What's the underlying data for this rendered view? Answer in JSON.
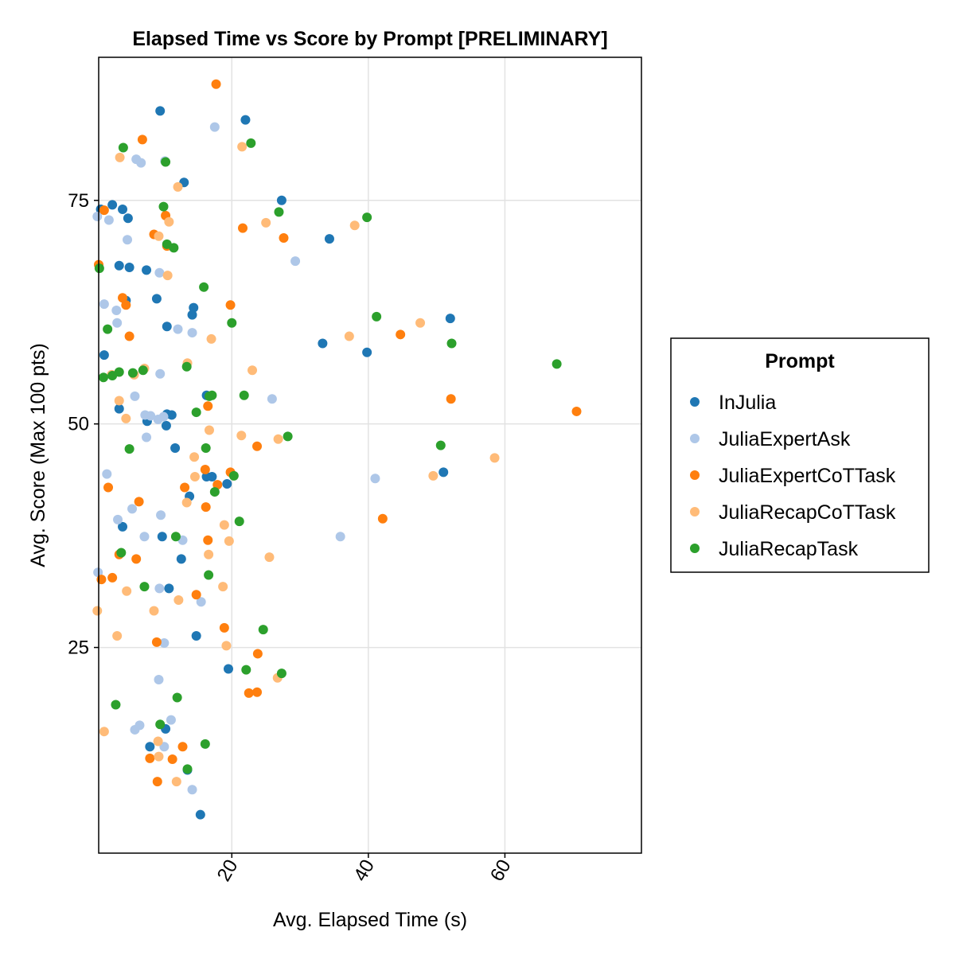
{
  "chart_data": {
    "type": "scatter",
    "title": "Elapsed Time vs Score by Prompt [PRELIMINARY]",
    "xlabel": "Avg. Elapsed Time (s)",
    "ylabel": "Avg. Score (Max 100 pts)",
    "xlim": [
      0.5,
      80
    ],
    "ylim": [
      2,
      91
    ],
    "xticks": [
      20,
      40,
      60
    ],
    "yticks": [
      25,
      50,
      75
    ],
    "grid": true,
    "legend": {
      "title": "Prompt",
      "position": "right"
    },
    "series": [
      {
        "name": "InJulia",
        "color": "#1f77b4",
        "points": [
          [
            9.5,
            85
          ],
          [
            22,
            84
          ],
          [
            13,
            77
          ],
          [
            27.3,
            75
          ],
          [
            0.8,
            74
          ],
          [
            2.5,
            74.5
          ],
          [
            4,
            74
          ],
          [
            4.8,
            73
          ],
          [
            34.3,
            70.7
          ],
          [
            3.5,
            67.7
          ],
          [
            5,
            67.5
          ],
          [
            7.5,
            67.2
          ],
          [
            9,
            64
          ],
          [
            4.5,
            63.8
          ],
          [
            14.4,
            63
          ],
          [
            14.2,
            62.2
          ],
          [
            52,
            61.8
          ],
          [
            10.5,
            60.9
          ],
          [
            33.3,
            59
          ],
          [
            39.8,
            58
          ],
          [
            1.3,
            57.7
          ],
          [
            16.3,
            53.2
          ],
          [
            3.5,
            51.7
          ],
          [
            7.6,
            50.3
          ],
          [
            10.5,
            51.1
          ],
          [
            11.2,
            51
          ],
          [
            10.4,
            49.8
          ],
          [
            11.7,
            47.3
          ],
          [
            51,
            44.6
          ],
          [
            16.3,
            44.1
          ],
          [
            17.1,
            44.1
          ],
          [
            19.3,
            43.3
          ],
          [
            13.8,
            41.9
          ],
          [
            4,
            38.5
          ],
          [
            9.8,
            37.4
          ],
          [
            12.6,
            34.9
          ],
          [
            10.8,
            31.6
          ],
          [
            14.8,
            26.3
          ],
          [
            19.5,
            22.6
          ],
          [
            8,
            13.9
          ],
          [
            10.3,
            15.9
          ],
          [
            13.5,
            11.3
          ],
          [
            15.4,
            6.3
          ]
        ]
      },
      {
        "name": "JuliaExpertAsk",
        "color": "#aec7e8",
        "points": [
          [
            17.5,
            83.2
          ],
          [
            6,
            79.6
          ],
          [
            6.7,
            79.2
          ],
          [
            10.2,
            79.4
          ],
          [
            0.3,
            73.2
          ],
          [
            2,
            72.8
          ],
          [
            4.7,
            70.6
          ],
          [
            9.4,
            66.9
          ],
          [
            29.3,
            68.2
          ],
          [
            1.3,
            63.4
          ],
          [
            3.1,
            62.7
          ],
          [
            3.2,
            61.3
          ],
          [
            14.2,
            60.2
          ],
          [
            12.1,
            60.6
          ],
          [
            9.5,
            55.6
          ],
          [
            25.9,
            52.8
          ],
          [
            5.8,
            53.1
          ],
          [
            7.3,
            51
          ],
          [
            8.1,
            50.9
          ],
          [
            9.2,
            50.5
          ],
          [
            10,
            50.8
          ],
          [
            7.5,
            48.5
          ],
          [
            1.7,
            44.4
          ],
          [
            41,
            43.9
          ],
          [
            5.4,
            40.5
          ],
          [
            9.6,
            39.8
          ],
          [
            3.3,
            39.3
          ],
          [
            35.9,
            37.4
          ],
          [
            7.2,
            37.4
          ],
          [
            12.8,
            37
          ],
          [
            0.4,
            33.4
          ],
          [
            9.4,
            31.6
          ],
          [
            15.5,
            30.1
          ],
          [
            10.1,
            25.5
          ],
          [
            9.3,
            21.4
          ],
          [
            6.5,
            16.3
          ],
          [
            11.1,
            16.9
          ],
          [
            5.8,
            15.8
          ],
          [
            10.1,
            13.9
          ],
          [
            14.2,
            9.1
          ]
        ]
      },
      {
        "name": "JuliaExpertCoTTask",
        "color": "#ff7f0e",
        "points": [
          [
            17.7,
            88
          ],
          [
            6.9,
            81.8
          ],
          [
            1.3,
            73.9
          ],
          [
            10.3,
            73.3
          ],
          [
            21.6,
            71.9
          ],
          [
            8.6,
            71.2
          ],
          [
            27.6,
            70.8
          ],
          [
            10.5,
            69.9
          ],
          [
            0.5,
            67.8
          ],
          [
            4,
            64.1
          ],
          [
            4.5,
            63.3
          ],
          [
            19.8,
            63.3
          ],
          [
            44.7,
            60
          ],
          [
            5,
            59.8
          ],
          [
            52.1,
            52.8
          ],
          [
            16.5,
            52
          ],
          [
            70.5,
            51.4
          ],
          [
            23.7,
            47.5
          ],
          [
            16.1,
            44.9
          ],
          [
            19.8,
            44.6
          ],
          [
            17.9,
            43.2
          ],
          [
            1.9,
            42.9
          ],
          [
            13.1,
            42.9
          ],
          [
            6.4,
            41.3
          ],
          [
            16.2,
            40.7
          ],
          [
            42.1,
            39.4
          ],
          [
            16.5,
            37
          ],
          [
            3.5,
            35.4
          ],
          [
            6,
            34.9
          ],
          [
            0.9,
            32.6
          ],
          [
            2.5,
            32.8
          ],
          [
            14.8,
            30.9
          ],
          [
            18.9,
            27.2
          ],
          [
            9,
            25.6
          ],
          [
            23.8,
            24.3
          ],
          [
            22.5,
            19.9
          ],
          [
            23.7,
            20
          ],
          [
            8,
            12.6
          ],
          [
            11.3,
            12.5
          ],
          [
            12.8,
            13.9
          ],
          [
            9.1,
            10
          ]
        ]
      },
      {
        "name": "JuliaRecapCoTTask",
        "color": "#ffbb78",
        "points": [
          [
            21.5,
            81
          ],
          [
            3.6,
            79.8
          ],
          [
            12.1,
            76.5
          ],
          [
            10.8,
            72.6
          ],
          [
            25,
            72.5
          ],
          [
            38,
            72.2
          ],
          [
            9.3,
            71
          ],
          [
            10.6,
            66.6
          ],
          [
            47.6,
            61.3
          ],
          [
            37.2,
            59.8
          ],
          [
            17,
            59.5
          ],
          [
            13.5,
            56.8
          ],
          [
            7.2,
            56.2
          ],
          [
            2.4,
            55.5
          ],
          [
            5.7,
            55.5
          ],
          [
            23,
            56
          ],
          [
            3.5,
            52.6
          ],
          [
            4.5,
            50.6
          ],
          [
            16.7,
            49.3
          ],
          [
            21.4,
            48.7
          ],
          [
            26.8,
            48.3
          ],
          [
            14.5,
            46.3
          ],
          [
            58.5,
            46.2
          ],
          [
            49.5,
            44.2
          ],
          [
            14.6,
            44.1
          ],
          [
            13.4,
            41.2
          ],
          [
            18.9,
            38.7
          ],
          [
            19.6,
            36.9
          ],
          [
            16.6,
            35.4
          ],
          [
            25.5,
            35.1
          ],
          [
            4.6,
            31.3
          ],
          [
            18.7,
            31.8
          ],
          [
            0.3,
            29.1
          ],
          [
            8.6,
            29.1
          ],
          [
            12.2,
            30.3
          ],
          [
            3.2,
            26.3
          ],
          [
            19.2,
            25.2
          ],
          [
            26.7,
            21.6
          ],
          [
            1.3,
            15.6
          ],
          [
            9.2,
            14.5
          ],
          [
            9.3,
            12.8
          ],
          [
            11.9,
            10
          ]
        ]
      },
      {
        "name": "JuliaRecapTask",
        "color": "#2ca02c",
        "points": [
          [
            4.1,
            80.9
          ],
          [
            22.8,
            81.4
          ],
          [
            10.3,
            79.3
          ],
          [
            10,
            74.3
          ],
          [
            26.9,
            73.7
          ],
          [
            39.8,
            73.1
          ],
          [
            10.5,
            70.1
          ],
          [
            11.5,
            69.7
          ],
          [
            0.6,
            67.4
          ],
          [
            15.9,
            65.3
          ],
          [
            41.2,
            62
          ],
          [
            20,
            61.3
          ],
          [
            1.8,
            60.6
          ],
          [
            52.2,
            59
          ],
          [
            67.6,
            56.7
          ],
          [
            13.4,
            56.4
          ],
          [
            3.5,
            55.8
          ],
          [
            7,
            56
          ],
          [
            5.5,
            55.7
          ],
          [
            2.5,
            55.4
          ],
          [
            1.2,
            55.2
          ],
          [
            16.7,
            53.1
          ],
          [
            21.8,
            53.2
          ],
          [
            17.1,
            53.2
          ],
          [
            14.8,
            51.3
          ],
          [
            28.2,
            48.6
          ],
          [
            50.6,
            47.6
          ],
          [
            5,
            47.2
          ],
          [
            16.2,
            47.3
          ],
          [
            20.3,
            44.2
          ],
          [
            17.5,
            42.4
          ],
          [
            21.1,
            39.1
          ],
          [
            11.8,
            37.4
          ],
          [
            3.8,
            35.6
          ],
          [
            16.6,
            33.1
          ],
          [
            7.2,
            31.8
          ],
          [
            24.6,
            27
          ],
          [
            22.1,
            22.5
          ],
          [
            27.3,
            22.1
          ],
          [
            12,
            19.4
          ],
          [
            3,
            18.6
          ],
          [
            9.5,
            16.4
          ],
          [
            16.1,
            14.2
          ],
          [
            13.5,
            11.4
          ]
        ]
      }
    ]
  }
}
